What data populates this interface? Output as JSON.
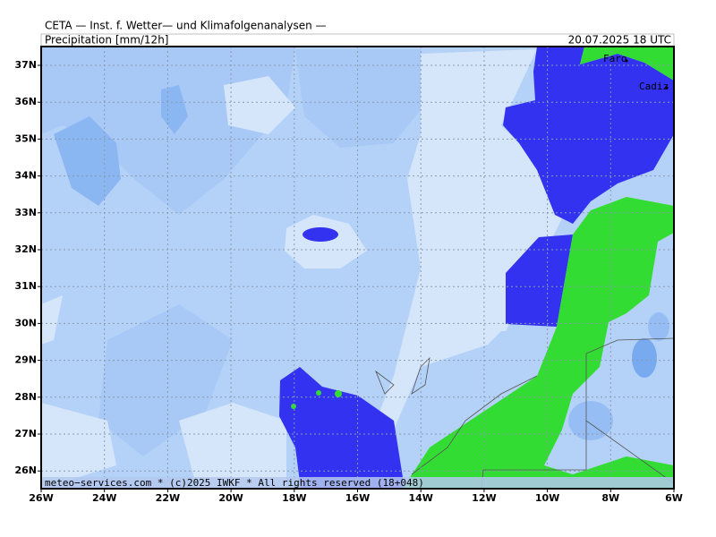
{
  "header": {
    "source": "CETA — Inst. f. Wetter— und Klimafolgenanalysen —",
    "parameter": "Precipitation [mm/12h]",
    "valid_time": "20.07.2025  18 UTC"
  },
  "map": {
    "lat_labels": [
      "37N",
      "36N",
      "35N",
      "34N",
      "33N",
      "32N",
      "31N",
      "30N",
      "29N",
      "28N",
      "27N",
      "26N"
    ],
    "lon_labels": [
      "26W",
      "24W",
      "22W",
      "20W",
      "18W",
      "16W",
      "14W",
      "12W",
      "10W",
      "8W",
      "6W"
    ],
    "places": [
      "Faro",
      "Cadiz"
    ]
  },
  "footer": "meteo−services.com * (c)2025 IWKF * All rights reserved (18+048)"
}
